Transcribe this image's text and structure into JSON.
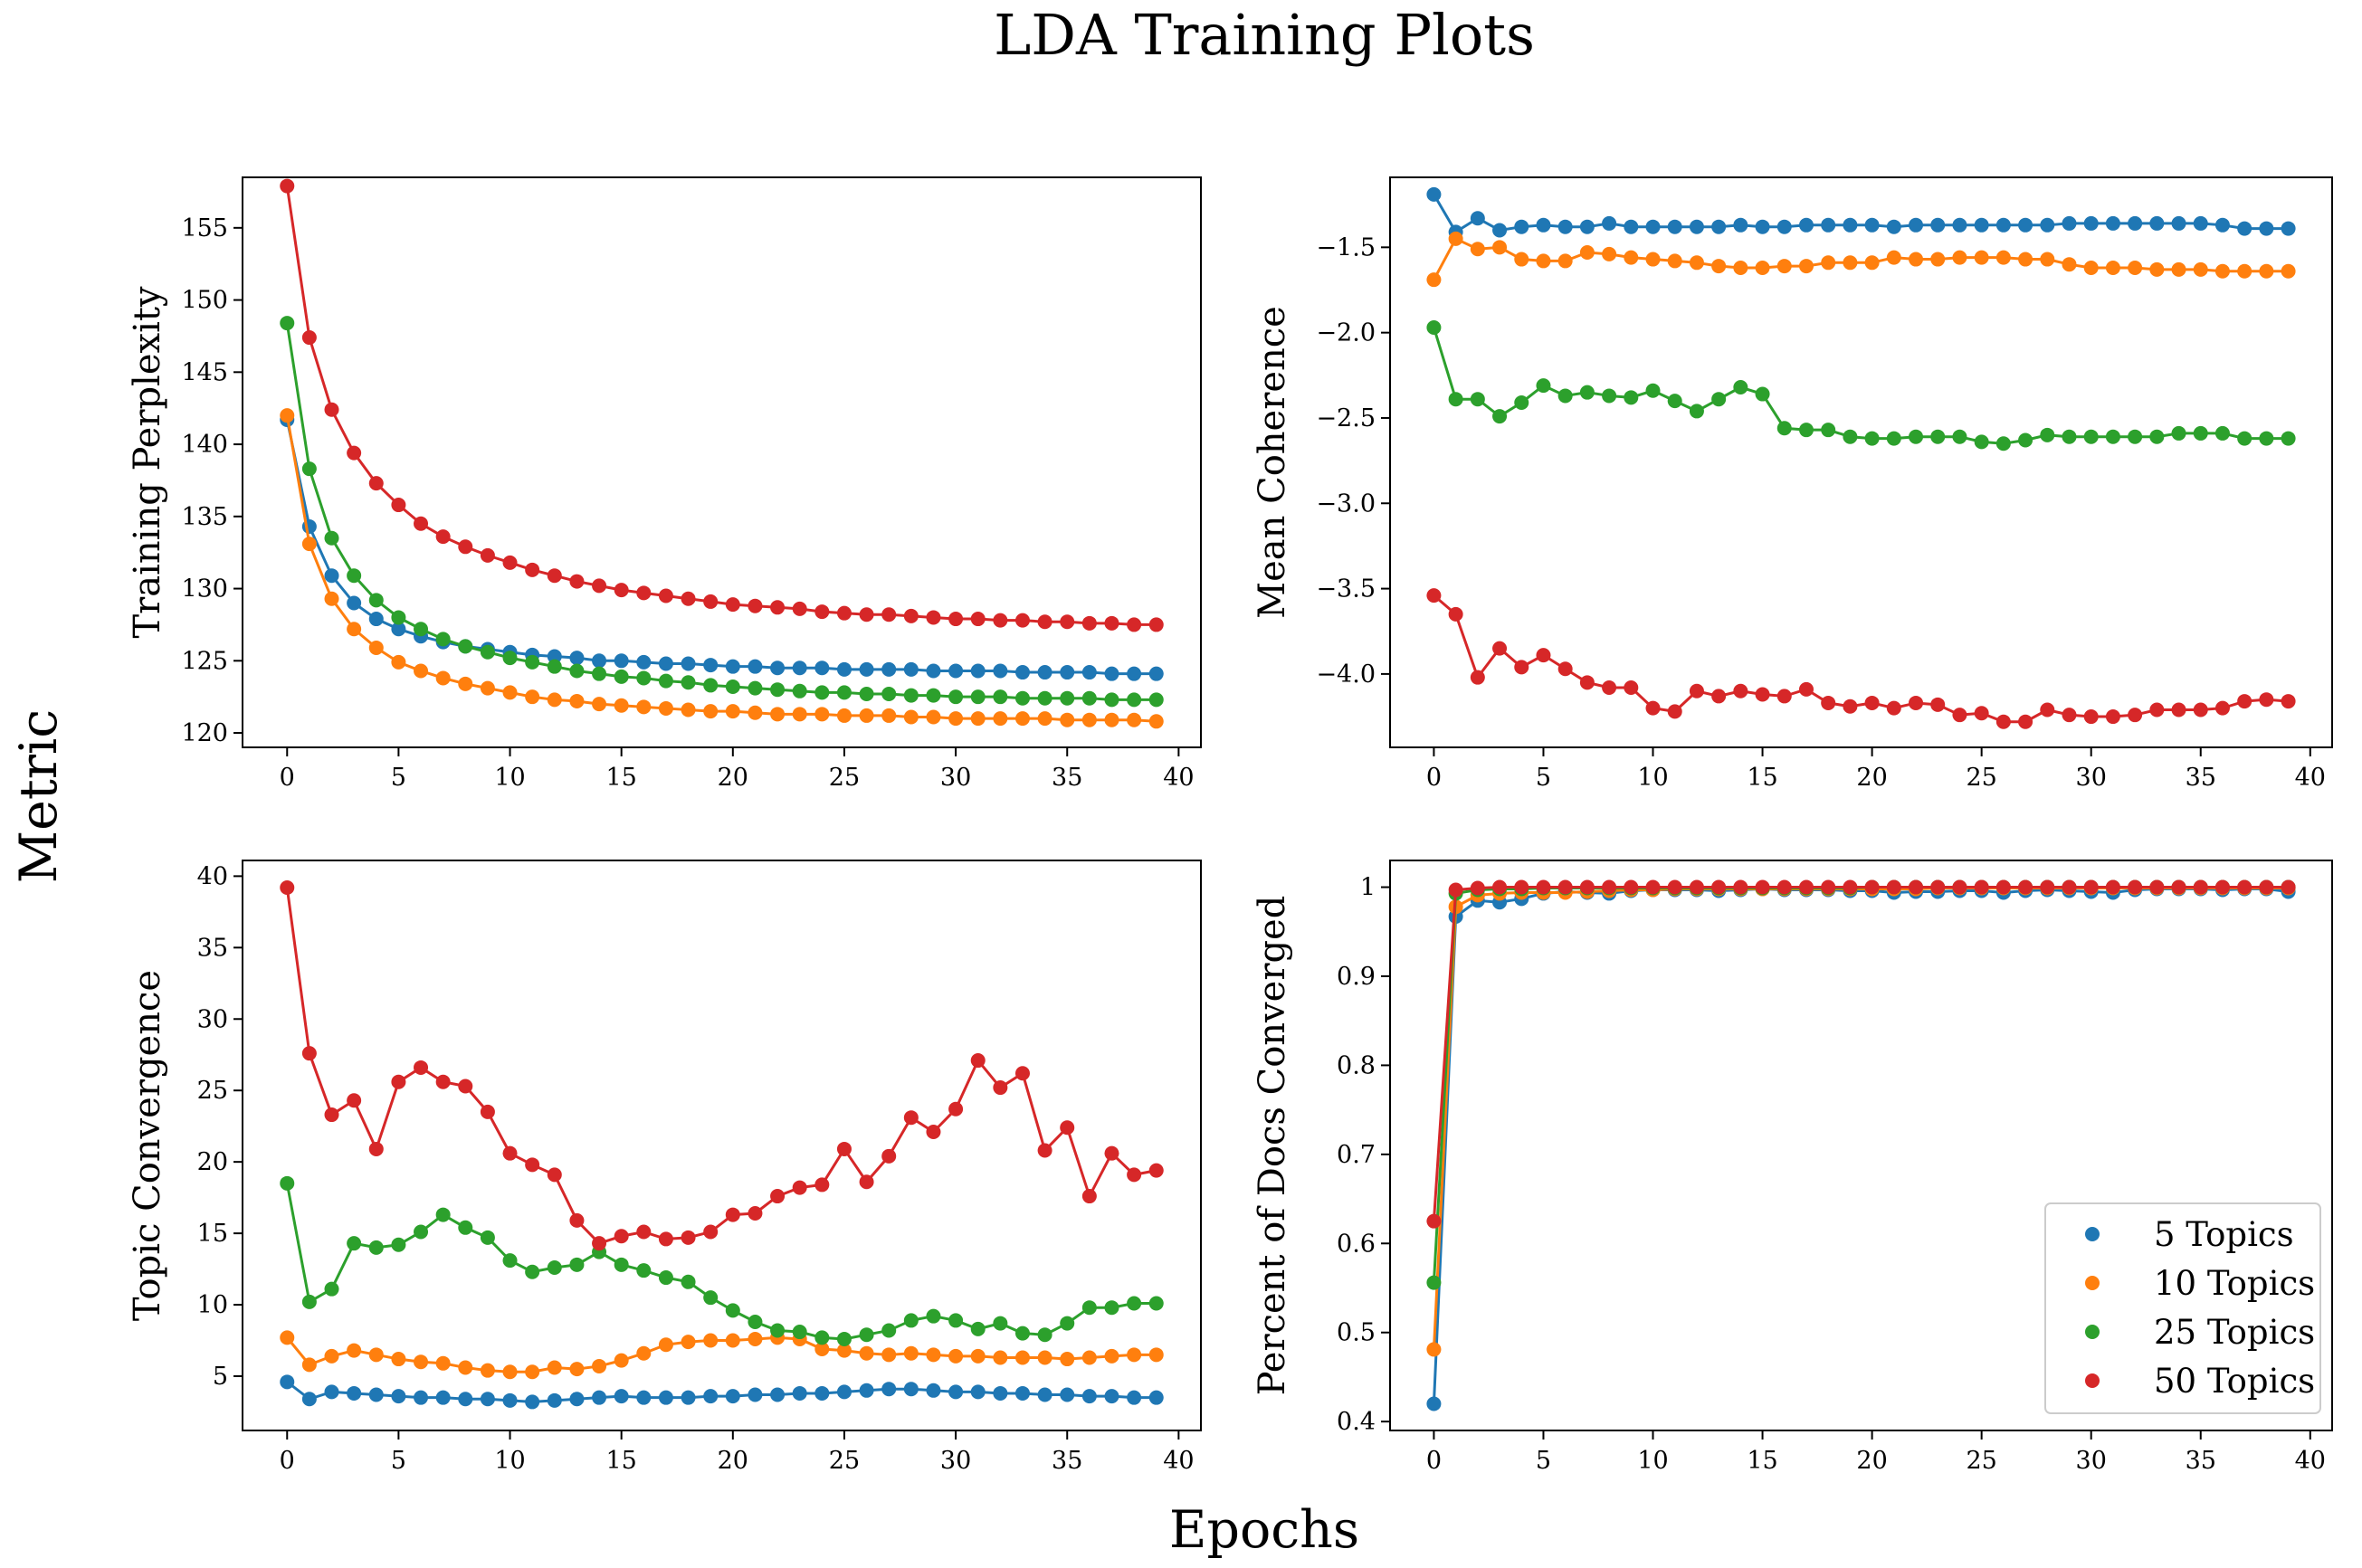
{
  "figure": {
    "title": "LDA Training Plots",
    "xlabel": "Epochs",
    "ylabel": "Metric"
  },
  "series_colors": [
    "#1f77b4",
    "#ff7f0e",
    "#2ca02c",
    "#d62728"
  ],
  "legend": {
    "placement": "lower-right of bottom-right panel",
    "entries": [
      "5 Topics",
      "10 Topics",
      "25 Topics",
      "50 Topics"
    ]
  },
  "chart_data": [
    {
      "type": "line",
      "ylabel": "Training Perplexity",
      "xlim": [
        -2,
        41
      ],
      "ylim": [
        119,
        158.5
      ],
      "xticks": [
        0,
        5,
        10,
        15,
        20,
        25,
        30,
        35,
        40
      ],
      "yticks": [
        120,
        125,
        130,
        135,
        140,
        145,
        150,
        155
      ],
      "x": [
        0,
        1,
        2,
        3,
        4,
        5,
        6,
        7,
        8,
        9,
        10,
        11,
        12,
        13,
        14,
        15,
        16,
        17,
        18,
        19,
        20,
        21,
        22,
        23,
        24,
        25,
        26,
        27,
        28,
        29,
        30,
        31,
        32,
        33,
        34,
        35,
        36,
        37,
        38,
        39
      ],
      "series": [
        {
          "name": "5 Topics",
          "values": [
            141.7,
            134.3,
            130.9,
            129.0,
            127.9,
            127.2,
            126.7,
            126.3,
            126.0,
            125.8,
            125.6,
            125.4,
            125.3,
            125.2,
            125.0,
            125.0,
            124.9,
            124.8,
            124.8,
            124.7,
            124.6,
            124.6,
            124.5,
            124.5,
            124.5,
            124.4,
            124.4,
            124.4,
            124.4,
            124.3,
            124.3,
            124.3,
            124.3,
            124.2,
            124.2,
            124.2,
            124.2,
            124.1,
            124.1,
            124.1
          ]
        },
        {
          "name": "10 Topics",
          "values": [
            142.0,
            133.1,
            129.3,
            127.2,
            125.9,
            124.9,
            124.3,
            123.8,
            123.4,
            123.1,
            122.8,
            122.5,
            122.3,
            122.2,
            122.0,
            121.9,
            121.8,
            121.7,
            121.6,
            121.5,
            121.5,
            121.4,
            121.3,
            121.3,
            121.3,
            121.2,
            121.2,
            121.2,
            121.1,
            121.1,
            121.0,
            121.0,
            121.0,
            121.0,
            121.0,
            120.9,
            120.9,
            120.9,
            120.9,
            120.8
          ]
        },
        {
          "name": "25 Topics",
          "values": [
            148.4,
            138.3,
            133.5,
            130.9,
            129.2,
            128.0,
            127.2,
            126.5,
            126.0,
            125.6,
            125.2,
            124.9,
            124.6,
            124.3,
            124.1,
            123.9,
            123.8,
            123.6,
            123.5,
            123.3,
            123.2,
            123.1,
            123.0,
            122.9,
            122.8,
            122.8,
            122.7,
            122.7,
            122.6,
            122.6,
            122.5,
            122.5,
            122.5,
            122.4,
            122.4,
            122.4,
            122.4,
            122.3,
            122.3,
            122.3
          ]
        },
        {
          "name": "50 Topics",
          "values": [
            157.9,
            147.4,
            142.4,
            139.4,
            137.3,
            135.8,
            134.5,
            133.6,
            132.9,
            132.3,
            131.8,
            131.3,
            130.9,
            130.5,
            130.2,
            129.9,
            129.7,
            129.5,
            129.3,
            129.1,
            128.9,
            128.8,
            128.7,
            128.6,
            128.4,
            128.3,
            128.2,
            128.2,
            128.1,
            128.0,
            127.9,
            127.9,
            127.8,
            127.8,
            127.7,
            127.7,
            127.6,
            127.6,
            127.5,
            127.5
          ]
        }
      ]
    },
    {
      "type": "line",
      "ylabel": "Mean Coherence",
      "xlim": [
        -2,
        41
      ],
      "ylim": [
        -4.43,
        -1.09
      ],
      "xticks": [
        0,
        5,
        10,
        15,
        20,
        25,
        30,
        35,
        40
      ],
      "yticks": [
        -4.0,
        -3.5,
        -3.0,
        -2.5,
        -2.0,
        -1.5
      ],
      "ytick_labels": [
        "−4.0",
        "−3.5",
        "−3.0",
        "−2.5",
        "−2.0",
        "−1.5"
      ],
      "x": [
        0,
        1,
        2,
        3,
        4,
        5,
        6,
        7,
        8,
        9,
        10,
        11,
        12,
        13,
        14,
        15,
        16,
        17,
        18,
        19,
        20,
        21,
        22,
        23,
        24,
        25,
        26,
        27,
        28,
        29,
        30,
        31,
        32,
        33,
        34,
        35,
        36,
        37,
        38,
        39
      ],
      "series": [
        {
          "name": "5 Topics",
          "values": [
            -1.19,
            -1.41,
            -1.33,
            -1.4,
            -1.38,
            -1.37,
            -1.38,
            -1.38,
            -1.36,
            -1.38,
            -1.38,
            -1.38,
            -1.38,
            -1.38,
            -1.37,
            -1.38,
            -1.38,
            -1.37,
            -1.37,
            -1.37,
            -1.37,
            -1.38,
            -1.37,
            -1.37,
            -1.37,
            -1.37,
            -1.37,
            -1.37,
            -1.37,
            -1.36,
            -1.36,
            -1.36,
            -1.36,
            -1.36,
            -1.36,
            -1.36,
            -1.37,
            -1.39,
            -1.39,
            -1.39
          ]
        },
        {
          "name": "10 Topics",
          "values": [
            -1.69,
            -1.45,
            -1.51,
            -1.5,
            -1.57,
            -1.58,
            -1.58,
            -1.53,
            -1.54,
            -1.56,
            -1.57,
            -1.58,
            -1.59,
            -1.61,
            -1.62,
            -1.62,
            -1.61,
            -1.61,
            -1.59,
            -1.59,
            -1.59,
            -1.56,
            -1.57,
            -1.57,
            -1.56,
            -1.56,
            -1.56,
            -1.57,
            -1.57,
            -1.6,
            -1.62,
            -1.62,
            -1.62,
            -1.63,
            -1.63,
            -1.63,
            -1.64,
            -1.64,
            -1.64,
            -1.64
          ]
        },
        {
          "name": "25 Topics",
          "values": [
            -1.97,
            -2.39,
            -2.39,
            -2.49,
            -2.41,
            -2.31,
            -2.37,
            -2.35,
            -2.37,
            -2.38,
            -2.34,
            -2.4,
            -2.46,
            -2.39,
            -2.32,
            -2.36,
            -2.56,
            -2.57,
            -2.57,
            -2.61,
            -2.62,
            -2.62,
            -2.61,
            -2.61,
            -2.61,
            -2.64,
            -2.65,
            -2.63,
            -2.6,
            -2.61,
            -2.61,
            -2.61,
            -2.61,
            -2.61,
            -2.59,
            -2.59,
            -2.59,
            -2.62,
            -2.62,
            -2.62
          ]
        },
        {
          "name": "50 Topics",
          "values": [
            -3.54,
            -3.65,
            -4.02,
            -3.85,
            -3.96,
            -3.89,
            -3.97,
            -4.05,
            -4.08,
            -4.08,
            -4.2,
            -4.22,
            -4.1,
            -4.13,
            -4.1,
            -4.12,
            -4.13,
            -4.09,
            -4.17,
            -4.19,
            -4.17,
            -4.2,
            -4.17,
            -4.18,
            -4.24,
            -4.23,
            -4.28,
            -4.28,
            -4.21,
            -4.24,
            -4.25,
            -4.25,
            -4.24,
            -4.21,
            -4.21,
            -4.21,
            -4.2,
            -4.16,
            -4.15,
            -4.16
          ]
        }
      ]
    },
    {
      "type": "line",
      "ylabel": "Topic Convergence",
      "xlim": [
        -2,
        41
      ],
      "ylim": [
        1.2,
        41.1
      ],
      "xticks": [
        0,
        5,
        10,
        15,
        20,
        25,
        30,
        35,
        40
      ],
      "yticks": [
        5,
        10,
        15,
        20,
        25,
        30,
        35,
        40
      ],
      "x": [
        0,
        1,
        2,
        3,
        4,
        5,
        6,
        7,
        8,
        9,
        10,
        11,
        12,
        13,
        14,
        15,
        16,
        17,
        18,
        19,
        20,
        21,
        22,
        23,
        24,
        25,
        26,
        27,
        28,
        29,
        30,
        31,
        32,
        33,
        34,
        35,
        36,
        37,
        38,
        39
      ],
      "series": [
        {
          "name": "5 Topics",
          "values": [
            4.6,
            3.4,
            3.9,
            3.8,
            3.7,
            3.6,
            3.5,
            3.5,
            3.4,
            3.4,
            3.3,
            3.2,
            3.3,
            3.4,
            3.5,
            3.6,
            3.5,
            3.5,
            3.5,
            3.6,
            3.6,
            3.7,
            3.7,
            3.8,
            3.8,
            3.9,
            4.0,
            4.1,
            4.1,
            4.0,
            3.9,
            3.9,
            3.8,
            3.8,
            3.7,
            3.7,
            3.6,
            3.6,
            3.5,
            3.5
          ]
        },
        {
          "name": "10 Topics",
          "values": [
            7.7,
            5.8,
            6.4,
            6.8,
            6.5,
            6.2,
            6.0,
            5.9,
            5.6,
            5.4,
            5.3,
            5.3,
            5.6,
            5.5,
            5.7,
            6.1,
            6.6,
            7.2,
            7.4,
            7.5,
            7.5,
            7.6,
            7.7,
            7.6,
            6.9,
            6.8,
            6.6,
            6.5,
            6.6,
            6.5,
            6.4,
            6.4,
            6.3,
            6.3,
            6.3,
            6.2,
            6.3,
            6.4,
            6.5,
            6.5
          ]
        },
        {
          "name": "25 Topics",
          "values": [
            18.5,
            10.2,
            11.1,
            14.3,
            14.0,
            14.2,
            15.1,
            16.3,
            15.4,
            14.7,
            13.1,
            12.3,
            12.6,
            12.8,
            13.7,
            12.8,
            12.4,
            11.9,
            11.6,
            10.5,
            9.6,
            8.8,
            8.2,
            8.1,
            7.7,
            7.6,
            7.9,
            8.2,
            8.9,
            9.2,
            8.9,
            8.3,
            8.7,
            8.0,
            7.9,
            8.7,
            9.8,
            9.8,
            10.1,
            10.1
          ]
        },
        {
          "name": "50 Topics",
          "values": [
            39.2,
            27.6,
            23.3,
            24.3,
            20.9,
            25.6,
            26.6,
            25.6,
            25.3,
            23.5,
            20.6,
            19.8,
            19.1,
            15.9,
            14.3,
            14.8,
            15.1,
            14.6,
            14.7,
            15.1,
            16.3,
            16.4,
            17.6,
            18.2,
            18.4,
            20.9,
            18.6,
            20.4,
            23.1,
            22.1,
            23.7,
            27.1,
            25.2,
            26.2,
            20.8,
            22.4,
            17.6,
            20.6,
            19.1,
            19.4
          ]
        }
      ]
    },
    {
      "type": "line",
      "ylabel": "Percent of Docs Converged",
      "xlim": [
        -2,
        41
      ],
      "ylim": [
        0.39,
        1.03
      ],
      "xticks": [
        0,
        5,
        10,
        15,
        20,
        25,
        30,
        35,
        40
      ],
      "yticks": [
        0.4,
        0.5,
        0.6,
        0.7,
        0.8,
        0.9,
        1.0
      ],
      "x": [
        0,
        1,
        2,
        3,
        4,
        5,
        6,
        7,
        8,
        9,
        10,
        11,
        12,
        13,
        14,
        15,
        16,
        17,
        18,
        19,
        20,
        21,
        22,
        23,
        24,
        25,
        26,
        27,
        28,
        29,
        30,
        31,
        32,
        33,
        34,
        35,
        36,
        37,
        38,
        39
      ],
      "series": [
        {
          "name": "5 Topics",
          "values": [
            0.42,
            0.967,
            0.985,
            0.983,
            0.987,
            0.993,
            0.995,
            0.994,
            0.993,
            0.996,
            0.997,
            0.997,
            0.997,
            0.996,
            0.997,
            0.998,
            0.997,
            0.997,
            0.997,
            0.996,
            0.996,
            0.994,
            0.995,
            0.995,
            0.996,
            0.996,
            0.994,
            0.996,
            0.997,
            0.996,
            0.995,
            0.994,
            0.997,
            0.998,
            0.998,
            0.998,
            0.997,
            0.998,
            0.998,
            0.995
          ]
        },
        {
          "name": "10 Topics",
          "values": [
            0.481,
            0.978,
            0.991,
            0.993,
            0.994,
            0.994,
            0.994,
            0.995,
            0.996,
            0.997,
            0.997,
            0.998,
            0.998,
            0.998,
            0.998,
            0.998,
            0.998,
            0.998,
            0.998,
            0.998,
            0.998,
            0.998,
            0.998,
            0.999,
            0.999,
            0.999,
            0.999,
            0.999,
            0.999,
            0.999,
            0.999,
            0.999,
            0.999,
            0.999,
            0.999,
            0.999,
            0.999,
            0.999,
            0.999,
            0.999
          ]
        },
        {
          "name": "25 Topics",
          "values": [
            0.556,
            0.993,
            0.997,
            0.998,
            0.998,
            0.999,
            0.999,
            0.999,
            0.999,
            0.999,
            0.999,
            0.999,
            0.999,
            0.999,
            0.999,
            0.999,
            0.999,
            0.999,
            0.999,
            0.999,
            1.0,
            1.0,
            1.0,
            1.0,
            1.0,
            1.0,
            1.0,
            1.0,
            1.0,
            1.0,
            1.0,
            1.0,
            1.0,
            1.0,
            1.0,
            1.0,
            1.0,
            1.0,
            1.0,
            1.0
          ]
        },
        {
          "name": "50 Topics",
          "values": [
            0.625,
            0.997,
            0.999,
            1.0,
            1.0,
            1.0,
            1.0,
            1.0,
            1.0,
            1.0,
            1.0,
            1.0,
            1.0,
            1.0,
            1.0,
            1.0,
            1.0,
            1.0,
            1.0,
            1.0,
            1.0,
            1.0,
            1.0,
            1.0,
            1.0,
            1.0,
            1.0,
            1.0,
            1.0,
            1.0,
            1.0,
            1.0,
            1.0,
            1.0,
            1.0,
            1.0,
            1.0,
            1.0,
            1.0,
            1.0
          ]
        }
      ]
    }
  ]
}
